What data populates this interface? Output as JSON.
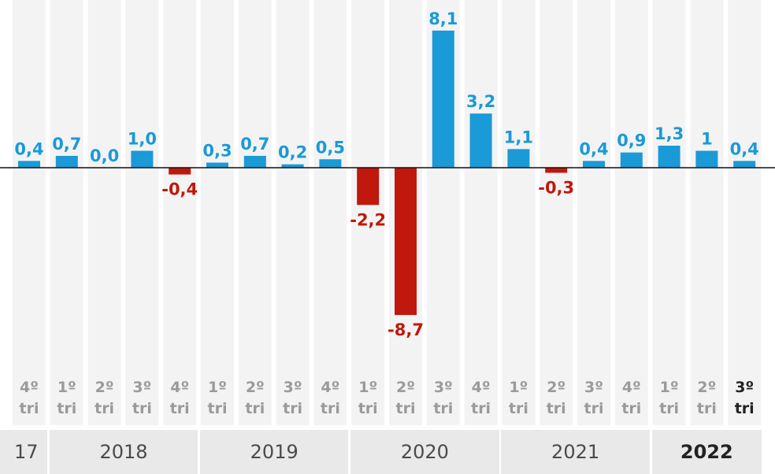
{
  "chart_data": {
    "type": "bar",
    "title": "",
    "xlabel": "",
    "ylabel": "",
    "unit": "%",
    "categories": [
      {
        "q": "4º",
        "t": "tri"
      },
      {
        "q": "1º",
        "t": "tri"
      },
      {
        "q": "2º",
        "t": "tri"
      },
      {
        "q": "3º",
        "t": "tri"
      },
      {
        "q": "4º",
        "t": "tri"
      },
      {
        "q": "1º",
        "t": "tri"
      },
      {
        "q": "2º",
        "t": "tri"
      },
      {
        "q": "3º",
        "t": "tri"
      },
      {
        "q": "4º",
        "t": "tri"
      },
      {
        "q": "1º",
        "t": "tri"
      },
      {
        "q": "2º",
        "t": "tri"
      },
      {
        "q": "3º",
        "t": "tri"
      },
      {
        "q": "4º",
        "t": "tri"
      },
      {
        "q": "1º",
        "t": "tri"
      },
      {
        "q": "2º",
        "t": "tri"
      },
      {
        "q": "3º",
        "t": "tri"
      },
      {
        "q": "4º",
        "t": "tri"
      },
      {
        "q": "1º",
        "t": "tri"
      },
      {
        "q": "2º",
        "t": "tri"
      },
      {
        "q": "3º",
        "t": "tri"
      }
    ],
    "values": [
      0.4,
      0.7,
      0.0,
      1.0,
      -0.4,
      0.3,
      0.7,
      0.2,
      0.5,
      -2.2,
      -8.7,
      8.1,
      3.2,
      1.1,
      -0.3,
      0.4,
      0.9,
      1.3,
      1.0,
      0.4
    ],
    "value_labels": [
      "0,4",
      "0,7",
      "0,0",
      "1,0",
      "-0,4",
      "0,3",
      "0,7",
      "0,2",
      "0,5",
      "-2,2",
      "-8,7",
      "8,1",
      "3,2",
      "1,1",
      "-0,3",
      "0,4",
      "0,9",
      "1,3",
      "1",
      "0,4"
    ],
    "highlight_index": 19,
    "years": [
      {
        "label": "17",
        "first": 0,
        "last": 0
      },
      {
        "label": "2018",
        "first": 1,
        "last": 4
      },
      {
        "label": "2019",
        "first": 5,
        "last": 8
      },
      {
        "label": "2020",
        "first": 9,
        "last": 12
      },
      {
        "label": "2021",
        "first": 13,
        "last": 16
      },
      {
        "label": "2022",
        "first": 17,
        "last": 19
      }
    ],
    "highlight_year": "2022",
    "colors": {
      "positive": "#1a9ad6",
      "negative": "#c0180c",
      "column_bg": "#f3f3f3",
      "axis": "#111111",
      "category_text": "#9a9a9a",
      "category_highlight": "#222222",
      "year_bg": "#e9e9e9"
    }
  }
}
